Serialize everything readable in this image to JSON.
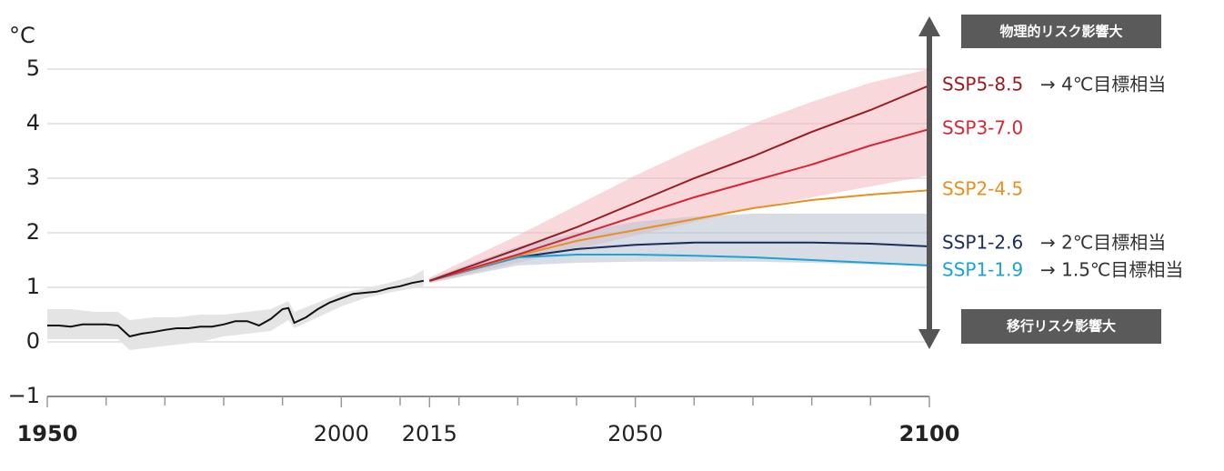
{
  "chart_data": {
    "type": "line",
    "y_unit": "°C",
    "xlim": [
      1950,
      2100
    ],
    "ylim": [
      -1,
      5
    ],
    "xticks": [
      {
        "value": 1950,
        "label": "1950",
        "bold": true
      },
      {
        "value": 2000,
        "label": "2000"
      },
      {
        "value": 2015,
        "label": "2015"
      },
      {
        "value": 2050,
        "label": "2050"
      },
      {
        "value": 2100,
        "label": "2100",
        "bold": true
      }
    ],
    "xminor_ticks": [
      1960,
      1970,
      1980,
      1990,
      2010,
      2020,
      2030,
      2040,
      2060,
      2070,
      2080,
      2090
    ],
    "yticks": [
      {
        "value": -1,
        "label": "−1"
      },
      0,
      1,
      2,
      3,
      4,
      5
    ],
    "grid": true,
    "bands": [
      {
        "color": "#e4e4e4",
        "x": [
          1950,
          1954,
          1958,
          1962,
          1964,
          1968,
          1972,
          1976,
          1980,
          1984,
          1988,
          1991,
          1992,
          1996,
          2000,
          2004,
          2008,
          2012,
          2014
        ],
        "lower": [
          0.05,
          0.05,
          0.05,
          0.05,
          -0.15,
          -0.1,
          -0.05,
          0.0,
          0.1,
          0.15,
          0.2,
          0.4,
          0.25,
          0.45,
          0.65,
          0.8,
          0.9,
          0.98,
          1.02
        ],
        "upper": [
          0.6,
          0.6,
          0.55,
          0.55,
          0.4,
          0.45,
          0.45,
          0.5,
          0.5,
          0.55,
          0.6,
          0.75,
          0.55,
          0.72,
          0.9,
          0.98,
          1.08,
          1.2,
          1.32
        ]
      },
      {
        "color": "#f3b2b9",
        "opacity": 0.5,
        "x": [
          2015,
          2030,
          2040,
          2050,
          2060,
          2070,
          2080,
          2090,
          2100
        ],
        "lower": [
          1.08,
          1.45,
          1.7,
          1.95,
          2.2,
          2.45,
          2.65,
          2.85,
          3.05
        ],
        "upper": [
          1.18,
          1.95,
          2.5,
          3.05,
          3.55,
          4.0,
          4.4,
          4.75,
          5.0
        ]
      },
      {
        "color": "#bcc4d4",
        "opacity": 0.6,
        "x": [
          2015,
          2030,
          2040,
          2050,
          2060,
          2070,
          2080,
          2090,
          2100
        ],
        "lower": [
          1.08,
          1.4,
          1.45,
          1.47,
          1.47,
          1.47,
          1.45,
          1.42,
          1.4
        ],
        "upper": [
          1.16,
          1.75,
          2.0,
          2.2,
          2.3,
          2.35,
          2.35,
          2.35,
          2.35
        ]
      }
    ],
    "series": [
      {
        "color": "#111111",
        "x": [
          1950,
          1952,
          1954,
          1956,
          1960,
          1962,
          1964,
          1966,
          1968,
          1970,
          1972,
          1974,
          1976,
          1978,
          1980,
          1982,
          1984,
          1986,
          1988,
          1990,
          1991,
          1992,
          1994,
          1996,
          1998,
          2000,
          2002,
          2004,
          2006,
          2008,
          2010,
          2012,
          2014
        ],
        "values": [
          0.3,
          0.3,
          0.28,
          0.32,
          0.32,
          0.3,
          0.1,
          0.15,
          0.18,
          0.22,
          0.25,
          0.25,
          0.28,
          0.28,
          0.32,
          0.38,
          0.38,
          0.3,
          0.42,
          0.6,
          0.62,
          0.35,
          0.45,
          0.6,
          0.72,
          0.8,
          0.88,
          0.9,
          0.92,
          0.98,
          1.02,
          1.08,
          1.12
        ]
      },
      {
        "name": "SSP1-2.6",
        "note": "→ 2℃目標相当",
        "color": "#1b2d5a",
        "x": [
          2015,
          2030,
          2040,
          2050,
          2060,
          2070,
          2080,
          2090,
          2100
        ],
        "values": [
          1.12,
          1.55,
          1.7,
          1.78,
          1.82,
          1.82,
          1.82,
          1.8,
          1.75
        ]
      },
      {
        "name": "SSP1-1.9",
        "note": "→ 1.5℃目標相当",
        "color": "#1aa3d6",
        "x": [
          2015,
          2030,
          2040,
          2050,
          2060,
          2070,
          2080,
          2090,
          2100
        ],
        "values": [
          1.12,
          1.55,
          1.6,
          1.6,
          1.58,
          1.55,
          1.5,
          1.45,
          1.4
        ]
      },
      {
        "name": "SSP2-4.5",
        "color": "#e8901f",
        "x": [
          2015,
          2030,
          2040,
          2050,
          2060,
          2070,
          2080,
          2090,
          2100
        ],
        "values": [
          1.12,
          1.58,
          1.85,
          2.05,
          2.25,
          2.45,
          2.6,
          2.7,
          2.78
        ]
      },
      {
        "name": "SSP3-7.0",
        "color": "#d62637",
        "x": [
          2015,
          2030,
          2040,
          2050,
          2060,
          2070,
          2080,
          2090,
          2100
        ],
        "values": [
          1.12,
          1.6,
          1.95,
          2.3,
          2.65,
          2.95,
          3.25,
          3.6,
          3.9
        ]
      },
      {
        "name": "SSP5-8.5",
        "note": "→ 4℃目標相当",
        "color": "#9b1b22",
        "x": [
          2015,
          2030,
          2040,
          2050,
          2060,
          2070,
          2080,
          2090,
          2100
        ],
        "values": [
          1.12,
          1.7,
          2.1,
          2.55,
          3.0,
          3.4,
          3.85,
          4.25,
          4.7
        ]
      }
    ],
    "arrow_top_label": "物理的リスク影響大",
    "arrow_bottom_label": "移行リスク影響大"
  }
}
